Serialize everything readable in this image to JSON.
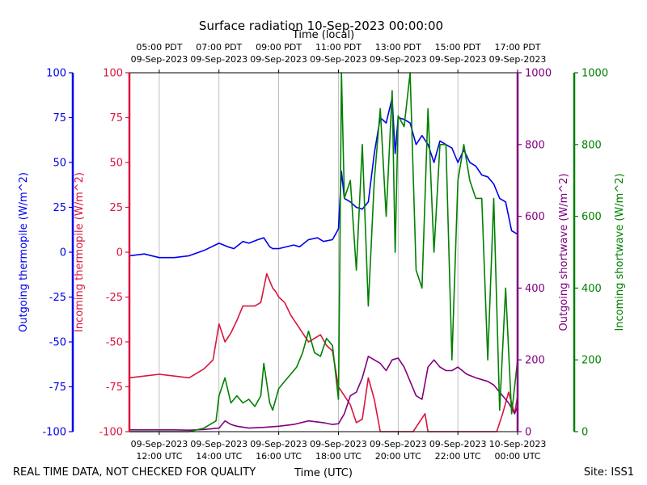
{
  "chart_data": {
    "type": "line",
    "title": "Surface radiation 10-Sep-2023 00:00:00",
    "xlabel": "Time (UTC)",
    "xlabel_top": "Time (local)",
    "footer_left": "REAL TIME DATA, NOT CHECKED FOR QUALITY",
    "footer_right": "Site: ISS1",
    "grid": "vertical",
    "x_range_hours_utc": [
      11.0,
      24.0
    ],
    "x_ticks_bottom": [
      {
        "hour": 12,
        "date": "09-Sep-2023",
        "time": "12:00 UTC"
      },
      {
        "hour": 14,
        "date": "09-Sep-2023",
        "time": "14:00 UTC"
      },
      {
        "hour": 16,
        "date": "09-Sep-2023",
        "time": "16:00 UTC"
      },
      {
        "hour": 18,
        "date": "09-Sep-2023",
        "time": "18:00 UTC"
      },
      {
        "hour": 20,
        "date": "09-Sep-2023",
        "time": "20:00 UTC"
      },
      {
        "hour": 22,
        "date": "09-Sep-2023",
        "time": "22:00 UTC"
      },
      {
        "hour": 24,
        "date": "10-Sep-2023",
        "time": "00:00 UTC"
      }
    ],
    "x_ticks_top": [
      {
        "hour": 12,
        "time": "05:00 PDT",
        "date": "09-Sep-2023"
      },
      {
        "hour": 14,
        "time": "07:00 PDT",
        "date": "09-Sep-2023"
      },
      {
        "hour": 16,
        "time": "09:00 PDT",
        "date": "09-Sep-2023"
      },
      {
        "hour": 18,
        "time": "11:00 PDT",
        "date": "09-Sep-2023"
      },
      {
        "hour": 20,
        "time": "13:00 PDT",
        "date": "09-Sep-2023"
      },
      {
        "hour": 22,
        "time": "15:00 PDT",
        "date": "09-Sep-2023"
      },
      {
        "hour": 24,
        "time": "17:00 PDT",
        "date": "09-Sep-2023"
      }
    ],
    "axes": {
      "outgoing_thermopile": {
        "label": "Outgoing thermopile (W/m^2)",
        "color": "#0000ee",
        "range": [
          -100,
          100
        ],
        "ticks": [
          "-100",
          "-75",
          "-50",
          "-25",
          "0",
          "25",
          "50",
          "75",
          "100"
        ]
      },
      "incoming_thermopile": {
        "label": "Incoming thermopile (W/m^2)",
        "color": "#dc143c",
        "range": [
          -100,
          100
        ],
        "ticks": [
          "-100",
          "-75",
          "-50",
          "-25",
          "0",
          "25",
          "50",
          "75",
          "100"
        ]
      },
      "outgoing_shortwave": {
        "label": "Outgoing shortwave (W/m^2)",
        "color": "#800080",
        "range": [
          0,
          1000
        ],
        "ticks": [
          "0",
          "200",
          "400",
          "600",
          "800",
          "1000"
        ]
      },
      "incoming_shortwave": {
        "label": "Incoming shortwave (W/m^2)",
        "color": "#008000",
        "range": [
          0,
          1000
        ],
        "ticks": [
          "0",
          "200",
          "400",
          "600",
          "800",
          "1000"
        ]
      }
    },
    "series": [
      {
        "name": "Outgoing thermopile",
        "axis": "outgoing_thermopile",
        "color": "#0000ee",
        "x": [
          11.0,
          11.5,
          12.0,
          12.5,
          13.0,
          13.5,
          14.0,
          14.3,
          14.5,
          14.8,
          15.0,
          15.3,
          15.5,
          15.7,
          15.8,
          16.0,
          16.5,
          16.7,
          17.0,
          17.3,
          17.5,
          17.8,
          18.0,
          18.1,
          18.2,
          18.4,
          18.6,
          18.8,
          19.0,
          19.2,
          19.4,
          19.6,
          19.8,
          19.9,
          20.0,
          20.2,
          20.4,
          20.6,
          20.8,
          21.0,
          21.2,
          21.4,
          21.6,
          21.8,
          22.0,
          22.2,
          22.4,
          22.6,
          22.8,
          23.0,
          23.2,
          23.4,
          23.6,
          23.8,
          24.0
        ],
        "y": [
          -2,
          -1,
          -3,
          -3,
          -2,
          1,
          5,
          3,
          2,
          6,
          5,
          7,
          8,
          3,
          2,
          2,
          4,
          3,
          7,
          8,
          6,
          7,
          13,
          45,
          30,
          28,
          25,
          24,
          28,
          55,
          75,
          72,
          86,
          55,
          75,
          74,
          72,
          60,
          65,
          60,
          50,
          62,
          60,
          58,
          50,
          57,
          50,
          48,
          43,
          42,
          38,
          30,
          28,
          12,
          10
        ]
      },
      {
        "name": "Incoming thermopile",
        "axis": "incoming_thermopile",
        "color": "#dc143c",
        "x": [
          11.0,
          11.5,
          12.0,
          12.5,
          13.0,
          13.5,
          13.8,
          14.0,
          14.2,
          14.4,
          14.6,
          14.8,
          15.0,
          15.2,
          15.4,
          15.6,
          15.8,
          15.9,
          16.0,
          16.2,
          16.4,
          16.6,
          16.8,
          17.0,
          17.2,
          17.4,
          17.6,
          17.8,
          18.0,
          18.2,
          18.4,
          18.6,
          18.8,
          19.0,
          19.2,
          19.4,
          19.6,
          19.8,
          20.0,
          20.5,
          20.9,
          21.0,
          21.3,
          21.6,
          22.0,
          22.5,
          23.0,
          23.3,
          23.5,
          23.7,
          23.9,
          24.0
        ],
        "y": [
          -70,
          -69,
          -68,
          -69,
          -70,
          -65,
          -60,
          -40,
          -50,
          -45,
          -38,
          -30,
          -30,
          -30,
          -28,
          -12,
          -20,
          -22,
          -25,
          -28,
          -35,
          -40,
          -45,
          -50,
          -48,
          -46,
          -52,
          -55,
          -75,
          -80,
          -85,
          -95,
          -93,
          -70,
          -82,
          -100,
          -100,
          -100,
          -100,
          -100,
          -90,
          -100,
          -100,
          -100,
          -100,
          -100,
          -100,
          -100,
          -90,
          -78,
          -90,
          -80
        ]
      },
      {
        "name": "Outgoing shortwave",
        "axis": "outgoing_shortwave",
        "color": "#800080",
        "x": [
          11.0,
          11.5,
          12.0,
          12.5,
          13.0,
          13.5,
          14.0,
          14.2,
          14.4,
          14.6,
          15.0,
          15.5,
          16.0,
          16.5,
          17.0,
          17.5,
          17.8,
          18.0,
          18.2,
          18.4,
          18.6,
          18.8,
          19.0,
          19.2,
          19.4,
          19.6,
          19.8,
          20.0,
          20.2,
          20.4,
          20.6,
          20.8,
          21.0,
          21.2,
          21.4,
          21.6,
          21.8,
          22.0,
          22.3,
          22.6,
          23.0,
          23.2,
          23.5,
          23.7,
          23.9,
          24.0
        ],
        "y": [
          5,
          5,
          5,
          5,
          4,
          6,
          10,
          30,
          20,
          15,
          10,
          12,
          15,
          20,
          30,
          25,
          20,
          22,
          50,
          100,
          110,
          150,
          210,
          200,
          190,
          170,
          200,
          205,
          180,
          140,
          100,
          90,
          180,
          200,
          180,
          170,
          170,
          180,
          160,
          150,
          140,
          130,
          100,
          80,
          50,
          70
        ]
      },
      {
        "name": "Incoming shortwave",
        "axis": "incoming_shortwave",
        "color": "#008000",
        "x": [
          11.0,
          11.5,
          12.0,
          12.5,
          13.0,
          13.5,
          13.9,
          14.0,
          14.2,
          14.4,
          14.6,
          14.8,
          15.0,
          15.2,
          15.4,
          15.5,
          15.7,
          15.8,
          16.0,
          16.2,
          16.4,
          16.6,
          16.8,
          17.0,
          17.2,
          17.4,
          17.6,
          17.8,
          18.0,
          18.05,
          18.1,
          18.2,
          18.4,
          18.6,
          18.8,
          19.0,
          19.2,
          19.4,
          19.6,
          19.8,
          19.9,
          20.0,
          20.2,
          20.4,
          20.6,
          20.8,
          21.0,
          21.2,
          21.4,
          21.6,
          21.8,
          22.0,
          22.2,
          22.4,
          22.6,
          22.8,
          23.0,
          23.2,
          23.4,
          23.6,
          23.8,
          24.0
        ],
        "y": [
          0,
          0,
          0,
          0,
          0,
          10,
          30,
          100,
          150,
          80,
          100,
          80,
          90,
          70,
          100,
          190,
          80,
          60,
          120,
          140,
          160,
          180,
          220,
          280,
          220,
          210,
          260,
          240,
          90,
          500,
          1000,
          650,
          700,
          450,
          800,
          350,
          700,
          900,
          600,
          950,
          500,
          880,
          850,
          1000,
          450,
          400,
          900,
          500,
          800,
          800,
          200,
          700,
          800,
          700,
          650,
          650,
          200,
          650,
          60,
          400,
          50,
          200
        ]
      }
    ]
  }
}
